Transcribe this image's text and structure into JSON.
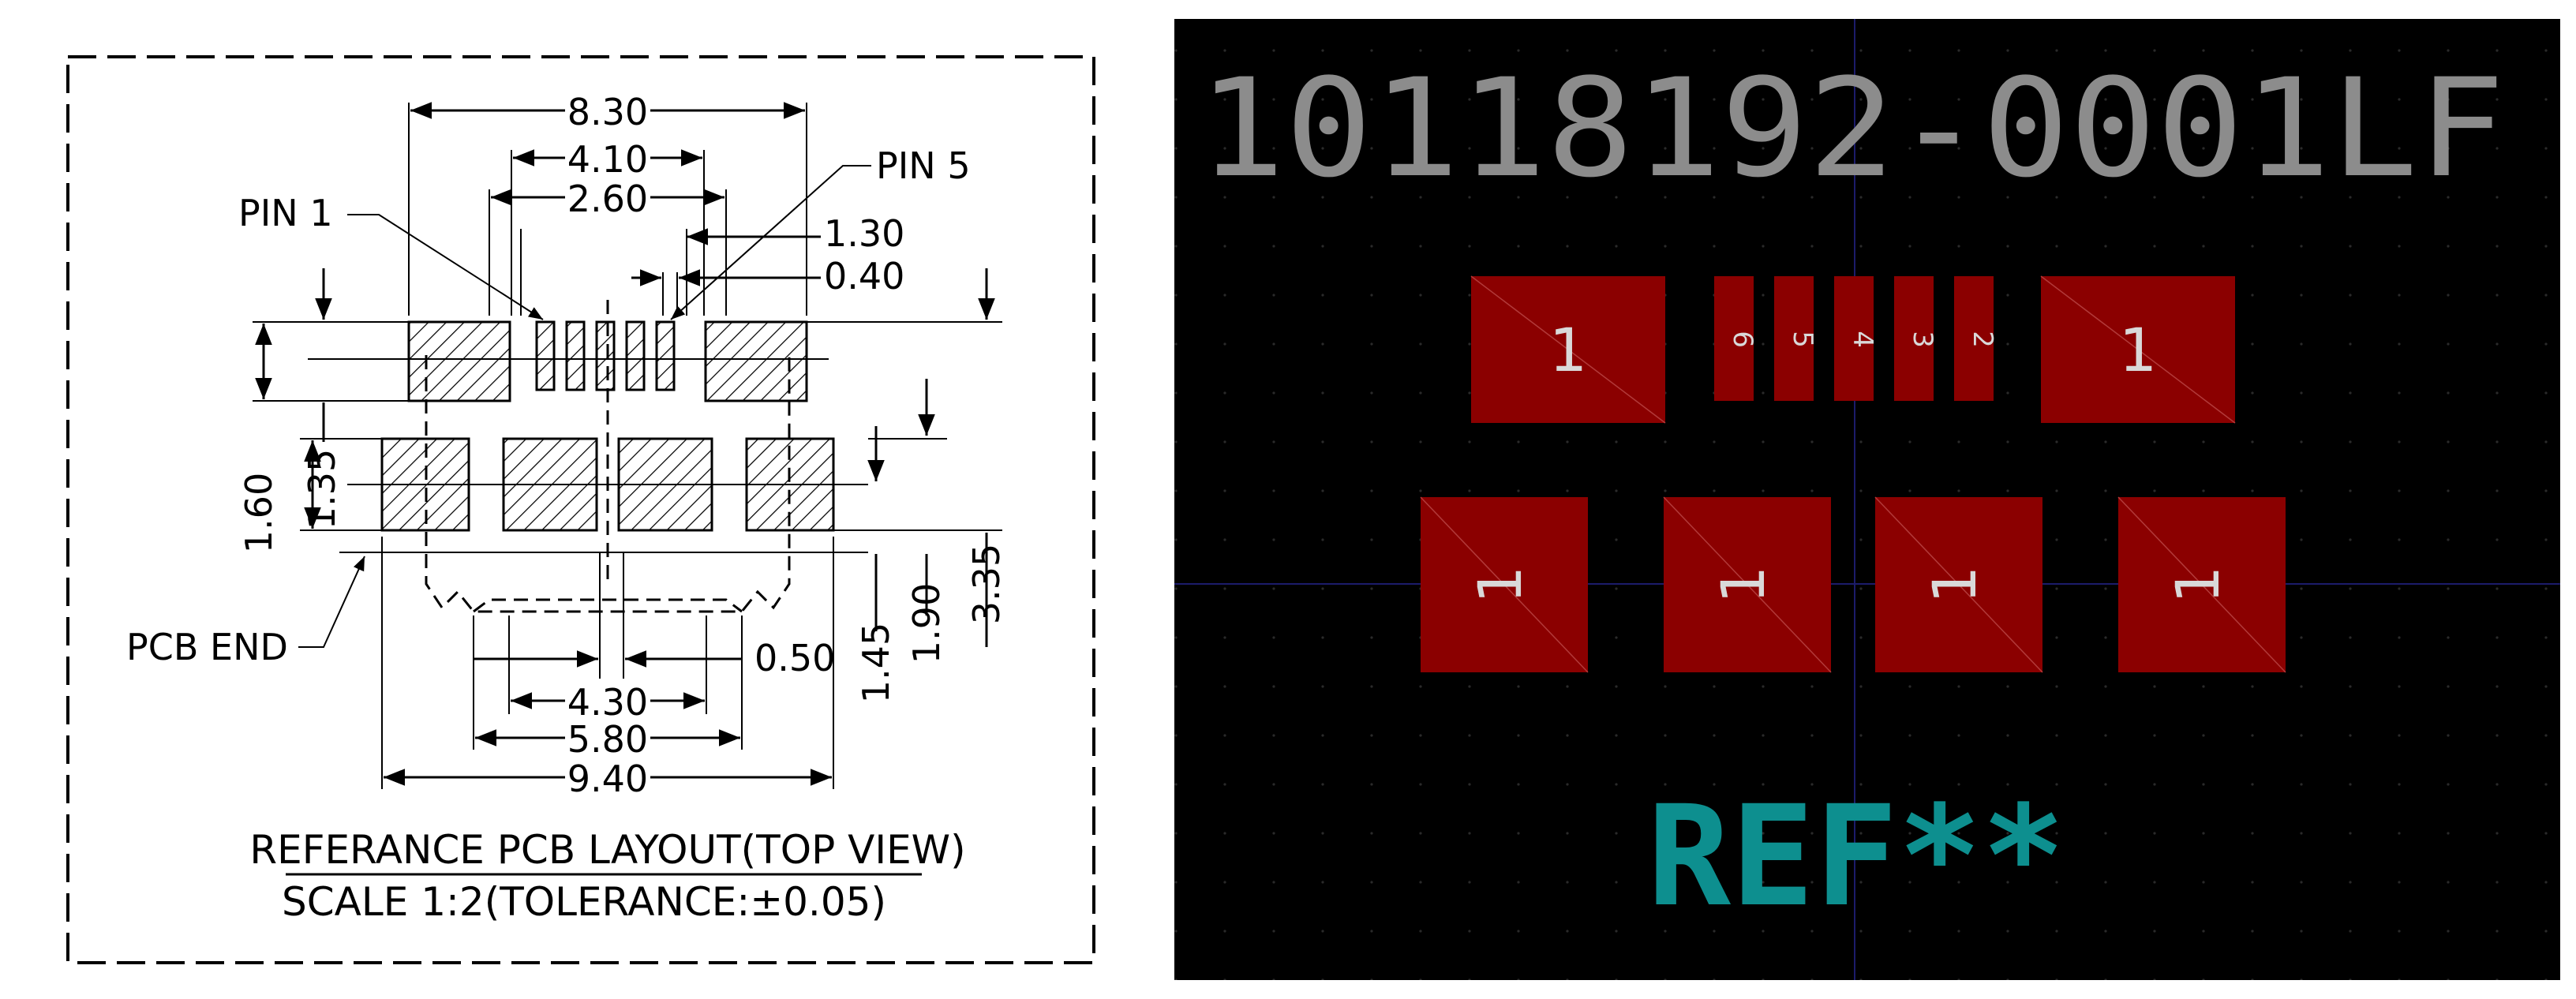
{
  "drawing": {
    "dimensions": {
      "d830": "8.30",
      "d410": "4.10",
      "d260": "2.60",
      "d130": "1.30",
      "d040": "0.40",
      "d160": "1.60",
      "d135": "1.35",
      "d335": "3.35",
      "d190": "1.90",
      "d145": "1.45",
      "d050": "0.50",
      "d430": "4.30",
      "d580": "5.80",
      "d940": "9.40"
    },
    "labels": {
      "pin1": "PIN 1",
      "pin5": "PIN 5",
      "pcb_end": "PCB END"
    },
    "title": "REFERANCE PCB LAYOUT(TOP VIEW)",
    "subtitle": "SCALE 1:2(TOLERANCE:±0.05)"
  },
  "pcb": {
    "part_number": "10118192-0001LF",
    "reference": "REF**",
    "pads": {
      "big": "1",
      "pin6": "6",
      "pin5": "5",
      "pin4": "4",
      "pin3": "3",
      "pin2": "2"
    },
    "colors": {
      "background": "#000000",
      "pad": "#8b0000",
      "silkscreen": "#8c8c8c",
      "reference": "#0d8f8f"
    }
  }
}
